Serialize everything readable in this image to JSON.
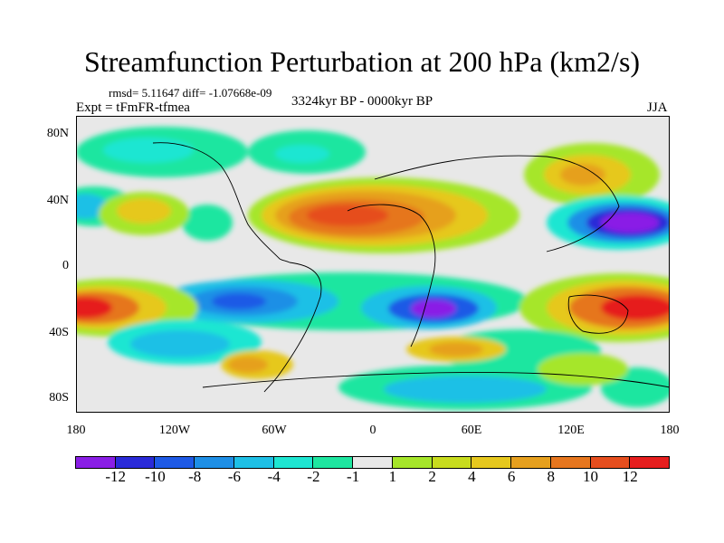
{
  "title": "Streamfunction Perturbation at 200 hPa (km2/s)",
  "stats": "rmsd= 5.11647 diff= -1.07668e-09",
  "experiment": "Expt = tFmFR-tfmea",
  "period": "3324kyr BP - 0000kyr BP",
  "season": "JJA",
  "lat_labels": [
    "80N",
    "40N",
    "0",
    "40S",
    "80S"
  ],
  "lon_labels": [
    "180",
    "120W",
    "60W",
    "0",
    "60E",
    "120E",
    "180"
  ],
  "colorbar": {
    "colors": [
      "#8a1ee6",
      "#2a2ad8",
      "#1e5ae6",
      "#1e8fe6",
      "#1ec0e6",
      "#1ee6d2",
      "#1ee6a0",
      "#e8e8e8",
      "#a6e62a",
      "#c8dc1e",
      "#e6c81e",
      "#e6a01e",
      "#e6761e",
      "#e64e1e",
      "#e61e1e"
    ],
    "labels": [
      "-12",
      "-10",
      "-8",
      "-6",
      "-4",
      "-2",
      "-1",
      "1",
      "2",
      "4",
      "6",
      "8",
      "10",
      "12"
    ]
  }
}
